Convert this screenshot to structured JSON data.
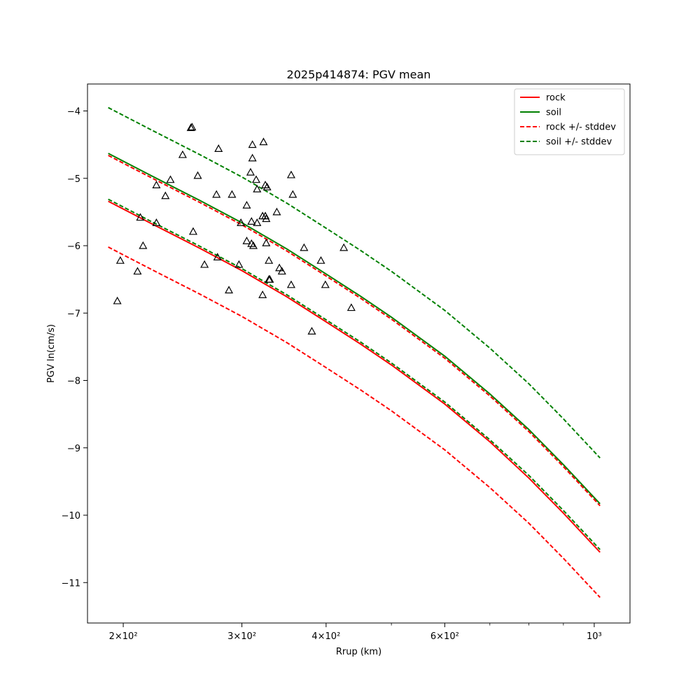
{
  "chart_data": {
    "type": "line",
    "title": "2025p414874: PGV mean",
    "xlabel": "Rrup (km)",
    "ylabel": "PGV ln(cm/s)",
    "xscale": "log",
    "xlim": [
      177,
      1130
    ],
    "ylim": [
      -11.6,
      -3.6
    ],
    "xticks": [
      {
        "value": 200,
        "label": "2×10²"
      },
      {
        "value": 300,
        "label": "3×10²"
      },
      {
        "value": 400,
        "label": "4×10²"
      },
      {
        "value": 600,
        "label": "6×10²"
      },
      {
        "value": 1000,
        "label": "10³"
      }
    ],
    "x_minor_ticks": [
      500,
      700,
      800,
      900
    ],
    "yticks": [
      -4,
      -5,
      -6,
      -7,
      -8,
      -9,
      -10,
      -11
    ],
    "ytick_labels": [
      "−4",
      "−5",
      "−6",
      "−7",
      "−8",
      "−9",
      "−10",
      "−11"
    ],
    "legend_position": "top-right",
    "x": [
      190,
      220,
      260,
      300,
      350,
      400,
      450,
      500,
      600,
      700,
      800,
      900,
      1020
    ],
    "series": [
      {
        "name": "rock",
        "style": "solid",
        "color": "#ff0000",
        "values": [
          -5.34,
          -5.67,
          -6.04,
          -6.37,
          -6.76,
          -7.13,
          -7.46,
          -7.77,
          -8.35,
          -8.91,
          -9.45,
          -9.97,
          -10.55
        ]
      },
      {
        "name": "soil",
        "style": "solid",
        "color": "#008000",
        "values": [
          -4.63,
          -4.96,
          -5.33,
          -5.66,
          -6.05,
          -6.42,
          -6.75,
          -7.06,
          -7.64,
          -8.2,
          -8.73,
          -9.25,
          -9.83
        ]
      },
      {
        "name": "rock +/- stddev",
        "style": "dashed",
        "color": "#ff0000",
        "values": [
          -4.66,
          -4.99,
          -5.36,
          -5.69,
          -6.08,
          -6.45,
          -6.78,
          -7.09,
          -7.67,
          -8.23,
          -8.76,
          -9.28,
          -9.86
        ]
      },
      {
        "name": "",
        "style": "dashed",
        "color": "#ff0000",
        "values": [
          -6.02,
          -6.35,
          -6.72,
          -7.05,
          -7.44,
          -7.81,
          -8.14,
          -8.45,
          -9.03,
          -9.59,
          -10.12,
          -10.64,
          -11.22
        ]
      },
      {
        "name": "soil +/- stddev",
        "style": "dashed",
        "color": "#008000",
        "values": [
          -3.95,
          -4.28,
          -4.65,
          -4.98,
          -5.37,
          -5.74,
          -6.07,
          -6.38,
          -6.96,
          -7.52,
          -8.05,
          -8.57,
          -9.15
        ]
      },
      {
        "name": "",
        "style": "dashed",
        "color": "#008000",
        "values": [
          -5.31,
          -5.64,
          -6.01,
          -6.34,
          -6.73,
          -7.1,
          -7.43,
          -7.74,
          -8.32,
          -8.88,
          -9.41,
          -9.93,
          -10.51
        ]
      }
    ],
    "points": [
      [
        196,
        -6.82
      ],
      [
        198,
        -6.22
      ],
      [
        210,
        -6.38
      ],
      [
        212,
        -5.58
      ],
      [
        214,
        -6.0
      ],
      [
        224,
        -5.66
      ],
      [
        224,
        -5.1
      ],
      [
        231,
        -5.26
      ],
      [
        235,
        -5.02
      ],
      [
        245,
        -4.65
      ],
      [
        252,
        -4.25
      ],
      [
        253,
        -4.24
      ],
      [
        254,
        -5.79
      ],
      [
        258,
        -4.96
      ],
      [
        264,
        -6.28
      ],
      [
        275,
        -5.24
      ],
      [
        276,
        -6.17
      ],
      [
        277,
        -4.56
      ],
      [
        287,
        -6.66
      ],
      [
        290,
        -5.24
      ],
      [
        297,
        -6.28
      ],
      [
        299,
        -5.66
      ],
      [
        305,
        -5.4
      ],
      [
        305,
        -5.93
      ],
      [
        309,
        -4.91
      ],
      [
        310,
        -5.64
      ],
      [
        310,
        -5.97
      ],
      [
        311,
        -4.5
      ],
      [
        311,
        -4.7
      ],
      [
        312,
        -6.0
      ],
      [
        315,
        -5.02
      ],
      [
        316,
        -5.66
      ],
      [
        316,
        -5.16
      ],
      [
        322,
        -6.73
      ],
      [
        322,
        -5.56
      ],
      [
        323,
        -4.46
      ],
      [
        325,
        -5.1
      ],
      [
        325,
        -5.56
      ],
      [
        326,
        -5.96
      ],
      [
        326,
        -5.6
      ],
      [
        327,
        -5.13
      ],
      [
        329,
        -6.5
      ],
      [
        329,
        -6.22
      ],
      [
        330,
        -6.5
      ],
      [
        338,
        -5.5
      ],
      [
        341,
        -6.33
      ],
      [
        344,
        -6.38
      ],
      [
        355,
        -4.95
      ],
      [
        355,
        -6.58
      ],
      [
        357,
        -5.24
      ],
      [
        371,
        -6.03
      ],
      [
        381,
        -7.27
      ],
      [
        393,
        -6.22
      ],
      [
        399,
        -6.58
      ],
      [
        425,
        -6.03
      ],
      [
        436,
        -6.92
      ]
    ]
  }
}
